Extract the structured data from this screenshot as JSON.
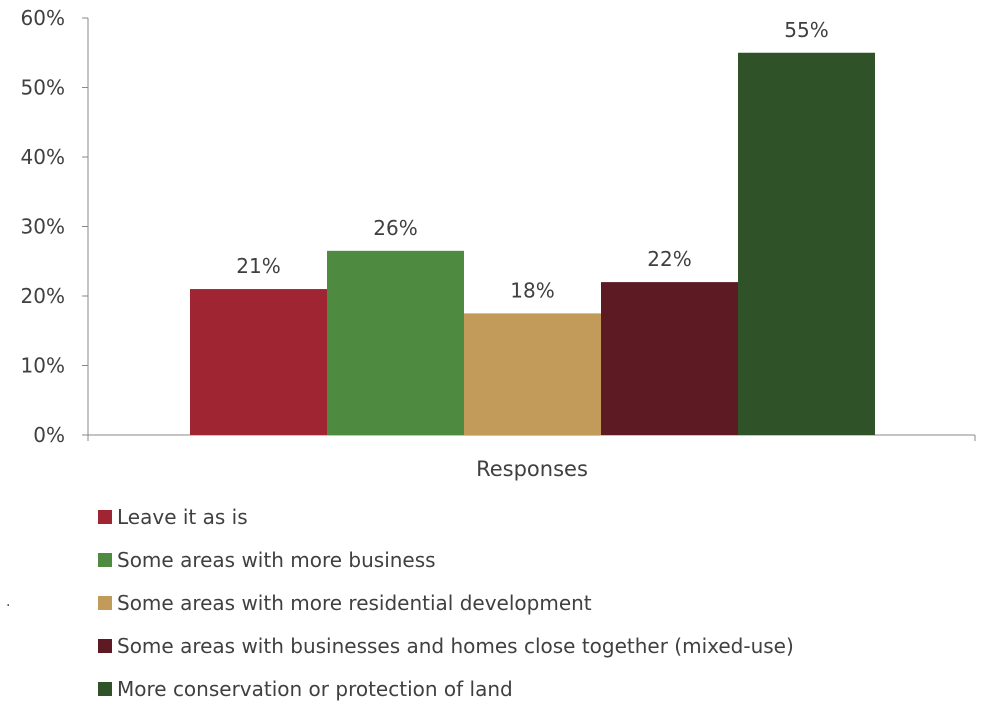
{
  "chart_data": {
    "type": "bar",
    "title": "",
    "xlabel": "Responses",
    "ylabel": "",
    "ylim": [
      0,
      60
    ],
    "y_ticks": [
      0,
      10,
      20,
      30,
      40,
      50,
      60
    ],
    "y_tick_format": "percent",
    "categories": [
      "Responses"
    ],
    "series": [
      {
        "name": "Leave it as is",
        "values": [
          21
        ],
        "label": "21%",
        "color": "#A02533"
      },
      {
        "name": "Some areas with more business",
        "values": [
          26.5
        ],
        "label": "26%",
        "color": "#4E8A40"
      },
      {
        "name": "Some areas with more residential development",
        "values": [
          17.5
        ],
        "label": "18%",
        "color": "#C29A5A"
      },
      {
        "name": "Some areas with businesses and homes close together (mixed-use)",
        "values": [
          22
        ],
        "label": "22%",
        "color": "#5E1A22"
      },
      {
        "name": "More conservation or protection of land",
        "values": [
          55
        ],
        "label": "55%",
        "color": "#2F5228"
      }
    ],
    "grid": false,
    "legend_position": "bottom-left"
  }
}
